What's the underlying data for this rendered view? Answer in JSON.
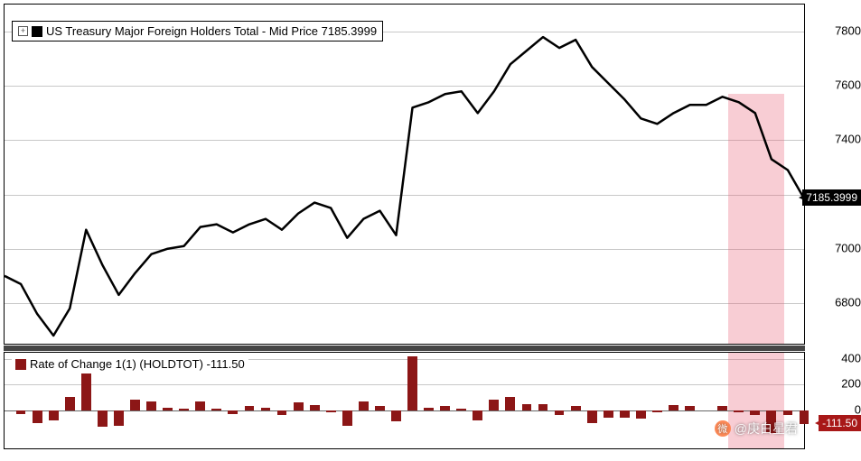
{
  "upper": {
    "type": "line",
    "legend_text": "US Treasury Major Foreign Holders Total - Mid Price 7185.3999",
    "marker_color": "#000000",
    "line_color": "#000000",
    "line_width": 2.5,
    "ylim": [
      6650,
      7900
    ],
    "yticks": [
      6800,
      7000,
      7200,
      7400,
      7600,
      7800
    ],
    "grid_color": "#c8c8c8",
    "background_color": "#ffffff",
    "highlight_x": [
      0.905,
      0.975
    ],
    "highlight_color": "rgba(234,100,120,0.32)",
    "current_label": "7185.3999",
    "current_value": 7185.3999,
    "data": [
      6900,
      6870,
      6760,
      6680,
      6780,
      7070,
      6940,
      6830,
      6910,
      6980,
      7000,
      7010,
      7080,
      7090,
      7060,
      7090,
      7110,
      7070,
      7130,
      7170,
      7150,
      7040,
      7110,
      7140,
      7050,
      7520,
      7540,
      7570,
      7580,
      7500,
      7580,
      7680,
      7730,
      7780,
      7740,
      7770,
      7670,
      7610,
      7550,
      7480,
      7460,
      7500,
      7530,
      7530,
      7560,
      7540,
      7500,
      7330,
      7290,
      7185.3999
    ]
  },
  "lower": {
    "type": "bar",
    "legend_text": "Rate of Change 1(1) (HOLDTOT) -111.50",
    "marker_color": "#8c1616",
    "bar_color": "#8c1616",
    "ylim": [
      -300,
      450
    ],
    "yticks": [
      0,
      200,
      400
    ],
    "grid_color": "#c8c8c8",
    "zero_color": "#666666",
    "highlight_x": [
      0.905,
      0.975
    ],
    "highlight_color": "rgba(234,100,120,0.32)",
    "current_label": "-111.50",
    "current_value": -111.5,
    "data": [
      -30,
      -100,
      -80,
      100,
      290,
      -130,
      -120,
      80,
      70,
      20,
      10,
      70,
      10,
      -30,
      30,
      20,
      -40,
      60,
      40,
      -20,
      -120,
      70,
      30,
      -90,
      420,
      20,
      30,
      10,
      -80,
      80,
      100,
      50,
      50,
      -40,
      30,
      -100,
      -60,
      -60,
      -70,
      -20,
      40,
      30,
      0,
      30,
      -20,
      -40,
      -180,
      -40,
      -111.5
    ]
  },
  "watermark": "@庚白星君"
}
